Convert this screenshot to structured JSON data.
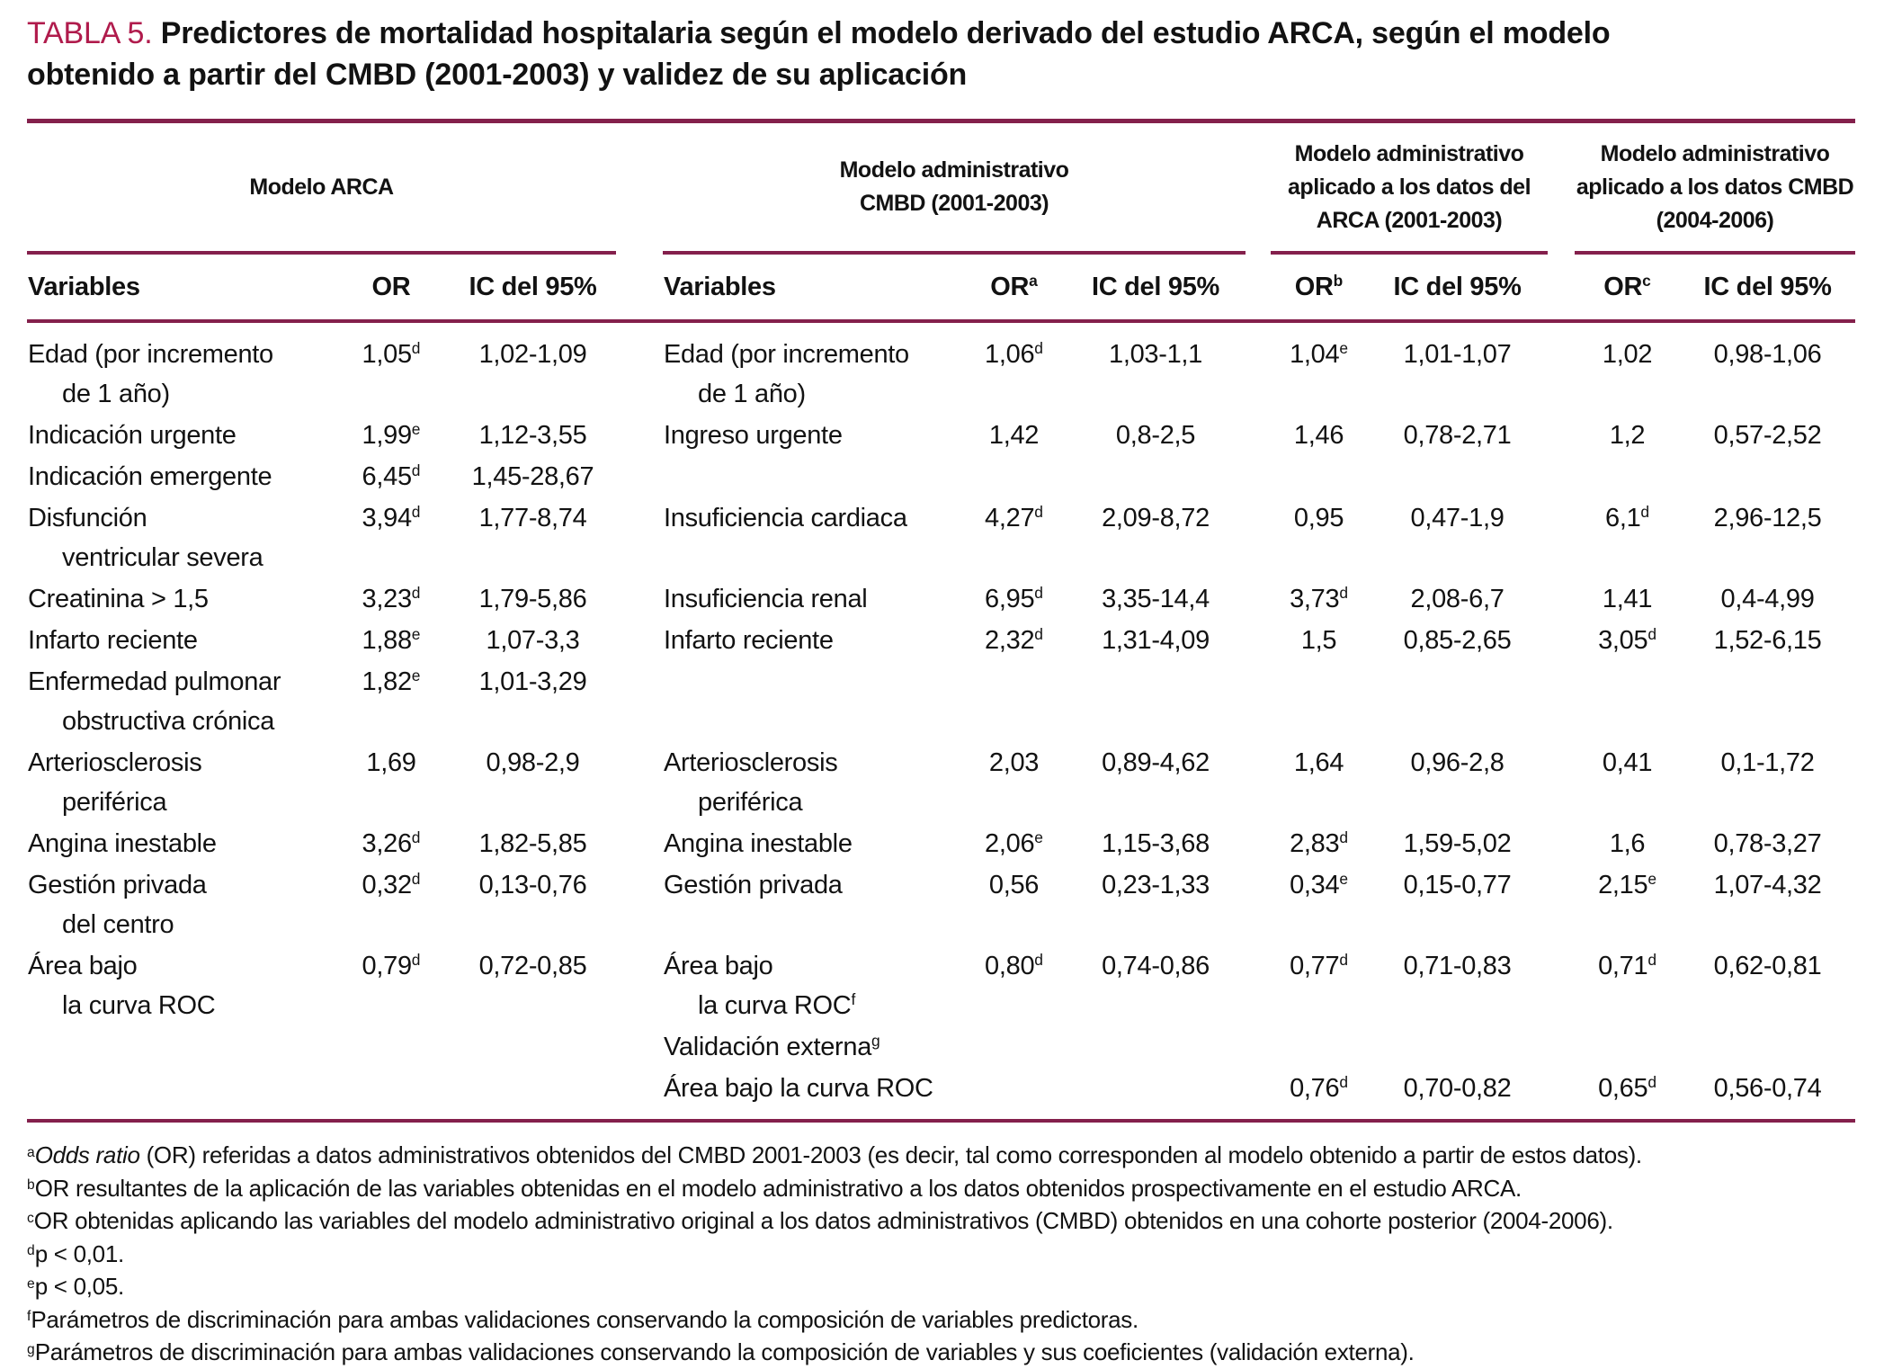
{
  "title": {
    "label": "TABLA 5.",
    "line1": "Predictores de mortalidad hospitalaria según el modelo derivado del estudio ARCA, según el modelo",
    "line2": "obtenido a partir del CMBD (2001-2003) y validez de su aplicación"
  },
  "colors": {
    "accent": "#84204c",
    "title_label": "#b01b4c"
  },
  "group_headers": [
    [
      "Modelo ARCA"
    ],
    [
      "Modelo administrativo",
      "CMBD (2001-2003)"
    ],
    [
      "Modelo administrativo",
      "aplicado a los datos del",
      "ARCA (2001-2003)"
    ],
    [
      "Modelo administrativo",
      "aplicado a los datos CMBD",
      "(2004-2006)"
    ]
  ],
  "column_headers": [
    "Variables",
    "OR",
    "IC del 95%",
    "Variables",
    "OR^a",
    "IC del 95%",
    "OR^b",
    "IC del 95%",
    "OR^c",
    "IC del 95%"
  ],
  "rows": [
    {
      "v1": [
        "Edad (por incremento",
        "de 1 año)"
      ],
      "or1": "1,05^d",
      "ic1": "1,02-1,09",
      "v2": [
        "Edad (por incremento",
        "de 1 año)"
      ],
      "or2": "1,06^d",
      "ic2": "1,03-1,1",
      "or3": "1,04^e",
      "ic3": "1,01-1,07",
      "or4": "1,02",
      "ic4": "0,98-1,06"
    },
    {
      "v1": [
        "Indicación urgente"
      ],
      "or1": "1,99^e",
      "ic1": "1,12-3,55",
      "v2": [
        "Ingreso urgente"
      ],
      "or2": "1,42",
      "ic2": "0,8-2,5",
      "or3": "1,46",
      "ic3": "0,78-2,71",
      "or4": "1,2",
      "ic4": "0,57-2,52"
    },
    {
      "v1": [
        "Indicación emergente"
      ],
      "or1": "6,45^d",
      "ic1": "1,45-28,67",
      "v2": [],
      "or2": "",
      "ic2": "",
      "or3": "",
      "ic3": "",
      "or4": "",
      "ic4": ""
    },
    {
      "v1": [
        "Disfunción",
        "ventricular severa"
      ],
      "or1": "3,94^d",
      "ic1": "1,77-8,74",
      "v2": [
        "Insuficiencia cardiaca"
      ],
      "or2": "4,27^d",
      "ic2": "2,09-8,72",
      "or3": "0,95",
      "ic3": "0,47-1,9",
      "or4": "6,1^d",
      "ic4": "2,96-12,5"
    },
    {
      "v1": [
        "Creatinina > 1,5"
      ],
      "or1": "3,23^d",
      "ic1": "1,79-5,86",
      "v2": [
        "Insuficiencia renal"
      ],
      "or2": "6,95^d",
      "ic2": "3,35-14,4",
      "or3": "3,73^d",
      "ic3": "2,08-6,7",
      "or4": "1,41",
      "ic4": "0,4-4,99"
    },
    {
      "v1": [
        "Infarto reciente"
      ],
      "or1": "1,88^e",
      "ic1": "1,07-3,3",
      "v2": [
        "Infarto reciente"
      ],
      "or2": "2,32^d",
      "ic2": "1,31-4,09",
      "or3": "1,5",
      "ic3": "0,85-2,65",
      "or4": "3,05^d",
      "ic4": "1,52-6,15"
    },
    {
      "v1": [
        "Enfermedad pulmonar",
        "obstructiva crónica"
      ],
      "or1": "1,82^e",
      "ic1": "1,01-3,29",
      "v2": [],
      "or2": "",
      "ic2": "",
      "or3": "",
      "ic3": "",
      "or4": "",
      "ic4": ""
    },
    {
      "v1": [
        "Arteriosclerosis",
        "periférica"
      ],
      "or1": "1,69",
      "ic1": "0,98-2,9",
      "v2": [
        "Arteriosclerosis",
        "periférica"
      ],
      "or2": "2,03",
      "ic2": "0,89-4,62",
      "or3": "1,64",
      "ic3": "0,96-2,8",
      "or4": "0,41",
      "ic4": "0,1-1,72"
    },
    {
      "v1": [
        "Angina inestable"
      ],
      "or1": "3,26^d",
      "ic1": "1,82-5,85",
      "v2": [
        "Angina inestable"
      ],
      "or2": "2,06^e",
      "ic2": "1,15-3,68",
      "or3": "2,83^d",
      "ic3": "1,59-5,02",
      "or4": "1,6",
      "ic4": "0,78-3,27"
    },
    {
      "v1": [
        "Gestión privada",
        "del centro"
      ],
      "or1": "0,32^d",
      "ic1": "0,13-0,76",
      "v2": [
        "Gestión privada"
      ],
      "or2": "0,56",
      "ic2": "0,23-1,33",
      "or3": "0,34^e",
      "ic3": "0,15-0,77",
      "or4": "2,15^e",
      "ic4": "1,07-4,32"
    },
    {
      "v1": [
        "Área bajo",
        "la curva ROC"
      ],
      "or1": "0,79^d",
      "ic1": "0,72-0,85",
      "v2": [
        "Área bajo",
        "la curva ROC^f"
      ],
      "or2": "0,80^d",
      "ic2": "0,74-0,86",
      "or3": "0,77^d",
      "ic3": "0,71-0,83",
      "or4": "0,71^d",
      "ic4": "0,62-0,81"
    },
    {
      "v1": [],
      "or1": "",
      "ic1": "",
      "v2": [
        "Validación externa^g"
      ],
      "or2": "",
      "ic2": "",
      "or3": "",
      "ic3": "",
      "or4": "",
      "ic4": ""
    },
    {
      "v1": [],
      "or1": "",
      "ic1": "",
      "v2": [
        "Área bajo la curva ROC"
      ],
      "or2": "",
      "ic2": "",
      "or3": "0,76^d",
      "ic3": "0,70-0,82",
      "or4": "0,65^d",
      "ic4": "0,56-0,74"
    }
  ],
  "footnotes": [
    {
      "sup": "a",
      "italic": "Odds ratio",
      "text": " (OR) referidas a datos administrativos obtenidos del CMBD 2001-2003 (es decir, tal como corresponden al modelo obtenido a partir de estos datos)."
    },
    {
      "sup": "b",
      "text": "OR resultantes de la aplicación de las variables obtenidas en el modelo administrativo a los datos obtenidos prospectivamente en el estudio ARCA."
    },
    {
      "sup": "c",
      "text": "OR obtenidas aplicando las variables del modelo administrativo original a los datos administrativos (CMBD) obtenidos en una cohorte posterior (2004-2006)."
    },
    {
      "sup": "d",
      "text": "p < 0,01."
    },
    {
      "sup": "e",
      "text": "p < 0,05."
    },
    {
      "sup": "f",
      "text": "Parámetros de discriminación para ambas validaciones conservando la composición de variables predictoras."
    },
    {
      "sup": "g",
      "text": "Parámetros de discriminación para ambas validaciones conservando la composición de variables y sus coeficientes (validación externa)."
    }
  ]
}
